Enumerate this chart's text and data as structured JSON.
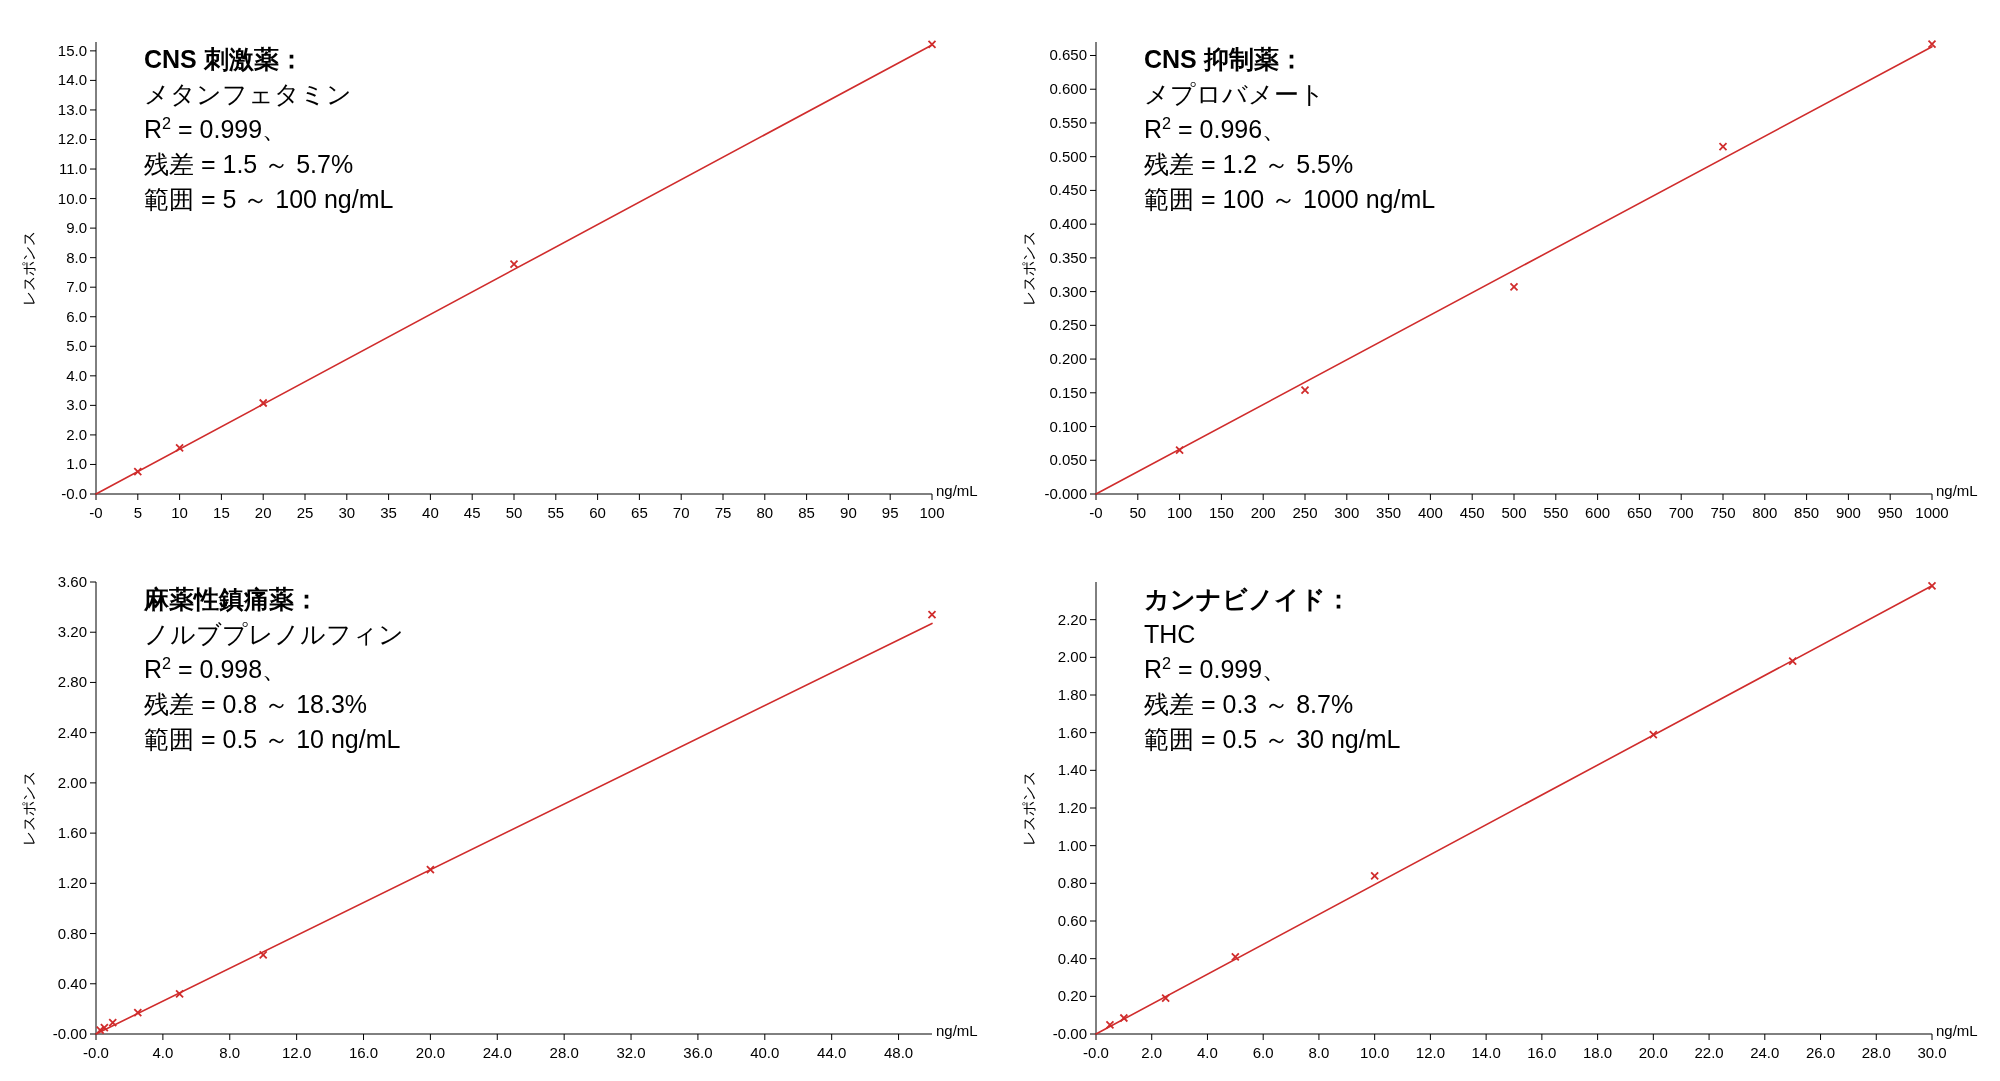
{
  "chart_data": [
    {
      "type": "scatter",
      "title": "CNS 刺激薬：",
      "subtitle": "メタンフェタミン",
      "annotations": [
        "R$^{2}$ = 0.999、",
        "残差 = 1.5 ～ 5.7%",
        "範囲 = 5 ～ 100 ng/mL"
      ],
      "xlabel": "ng/mL",
      "ylabel": "レスポンス",
      "grid": false,
      "xlim": [
        0,
        100
      ],
      "ylim": [
        0,
        15.3
      ],
      "xticks": [
        {
          "value": 0,
          "label": "-0"
        },
        5,
        10,
        15,
        20,
        25,
        30,
        35,
        40,
        45,
        50,
        55,
        60,
        65,
        70,
        75,
        80,
        85,
        90,
        95,
        100
      ],
      "yticks": [
        {
          "value": 0,
          "label": "-0.0"
        },
        {
          "value": 1,
          "label": "1.0"
        },
        {
          "value": 2,
          "label": "2.0"
        },
        {
          "value": 3,
          "label": "3.0"
        },
        {
          "value": 4,
          "label": "4.0"
        },
        {
          "value": 5,
          "label": "5.0"
        },
        {
          "value": 6,
          "label": "6.0"
        },
        {
          "value": 7,
          "label": "7.0"
        },
        {
          "value": 8,
          "label": "8.0"
        },
        {
          "value": 9,
          "label": "9.0"
        },
        {
          "value": 10,
          "label": "10.0"
        },
        {
          "value": 11,
          "label": "11.0"
        },
        {
          "value": 12,
          "label": "12.0"
        },
        {
          "value": 13,
          "label": "13.0"
        },
        {
          "value": 14,
          "label": "14.0"
        },
        {
          "value": 15,
          "label": "15.0"
        }
      ],
      "series": [
        {
          "marker": "cross",
          "color": "#d02c2c",
          "x": [
            5,
            10,
            20,
            50,
            100
          ],
          "values": [
            0.76,
            1.56,
            3.08,
            7.78,
            15.22
          ]
        },
        {
          "type": "line",
          "color": "#d02c2c",
          "x": [
            0,
            100
          ],
          "values": [
            0,
            15.2
          ]
        }
      ]
    },
    {
      "type": "scatter",
      "title": "CNS 抑制薬：",
      "subtitle": "メプロバメート",
      "annotations": [
        "R$^{2}$ = 0.996、",
        "残差 = 1.2 ～ 5.5%",
        "範囲 = 100 ～ 1000 ng/mL"
      ],
      "xlabel": "ng/mL",
      "ylabel": "レスポンス",
      "grid": false,
      "xlim": [
        0,
        1000
      ],
      "ylim": [
        0,
        0.67
      ],
      "xticks": [
        {
          "value": 0,
          "label": "-0"
        },
        50,
        100,
        150,
        200,
        250,
        300,
        350,
        400,
        450,
        500,
        550,
        600,
        650,
        700,
        750,
        800,
        850,
        900,
        950,
        1000
      ],
      "yticks": [
        {
          "value": 0,
          "label": "-0.000"
        },
        {
          "value": 0.05,
          "label": "0.050"
        },
        {
          "value": 0.1,
          "label": "0.100"
        },
        {
          "value": 0.15,
          "label": "0.150"
        },
        {
          "value": 0.2,
          "label": "0.200"
        },
        {
          "value": 0.25,
          "label": "0.250"
        },
        {
          "value": 0.3,
          "label": "0.300"
        },
        {
          "value": 0.35,
          "label": "0.350"
        },
        {
          "value": 0.4,
          "label": "0.400"
        },
        {
          "value": 0.45,
          "label": "0.450"
        },
        {
          "value": 0.5,
          "label": "0.500"
        },
        {
          "value": 0.55,
          "label": "0.550"
        },
        {
          "value": 0.6,
          "label": "0.600"
        },
        {
          "value": 0.65,
          "label": "0.650"
        }
      ],
      "series": [
        {
          "marker": "cross",
          "color": "#d02c2c",
          "x": [
            100,
            250,
            500,
            750,
            1000
          ],
          "values": [
            0.065,
            0.154,
            0.307,
            0.515,
            0.667
          ]
        },
        {
          "type": "line",
          "color": "#d02c2c",
          "x": [
            0,
            1000
          ],
          "values": [
            0,
            0.663
          ]
        }
      ]
    },
    {
      "type": "scatter",
      "title": "麻薬性鎮痛薬：",
      "subtitle": "ノルブプレノルフィン",
      "annotations": [
        "R$^{2}$ = 0.998、",
        "残差 = 0.8 ～ 18.3%",
        "範囲 = 0.5 ～ 10 ng/mL"
      ],
      "xlabel": "ng/mL",
      "ylabel": "レスポンス",
      "grid": false,
      "xlim": [
        0,
        50
      ],
      "ylim": [
        0,
        3.6
      ],
      "xticks": [
        {
          "value": 0,
          "label": "-0.0"
        },
        {
          "value": 4,
          "label": "4.0"
        },
        {
          "value": 8,
          "label": "8.0"
        },
        {
          "value": 12,
          "label": "12.0"
        },
        {
          "value": 16,
          "label": "16.0"
        },
        {
          "value": 20,
          "label": "20.0"
        },
        {
          "value": 24,
          "label": "24.0"
        },
        {
          "value": 28,
          "label": "28.0"
        },
        {
          "value": 32,
          "label": "32.0"
        },
        {
          "value": 36,
          "label": "36.0"
        },
        {
          "value": 40,
          "label": "40.0"
        },
        {
          "value": 44,
          "label": "44.0"
        },
        {
          "value": 48,
          "label": "48.0"
        }
      ],
      "yticks": [
        {
          "value": 0,
          "label": "-0.00"
        },
        {
          "value": 0.4,
          "label": "0.40"
        },
        {
          "value": 0.8,
          "label": "0.80"
        },
        {
          "value": 1.2,
          "label": "1.20"
        },
        {
          "value": 1.6,
          "label": "1.60"
        },
        {
          "value": 2,
          "label": "2.00"
        },
        {
          "value": 2.4,
          "label": "2.40"
        },
        {
          "value": 2.8,
          "label": "2.80"
        },
        {
          "value": 3.2,
          "label": "3.20"
        },
        {
          "value": 3.6,
          "label": "3.60"
        }
      ],
      "series": [
        {
          "marker": "cross",
          "color": "#d02c2c",
          "x": [
            0.25,
            0.5,
            1,
            2.5,
            5,
            10,
            20,
            50
          ],
          "values": [
            0.03,
            0.05,
            0.09,
            0.17,
            0.32,
            0.63,
            1.31,
            3.34
          ]
        },
        {
          "type": "line",
          "color": "#d02c2c",
          "x": [
            0,
            50
          ],
          "values": [
            0,
            3.27
          ]
        }
      ]
    },
    {
      "type": "scatter",
      "title": "カンナビノイド：",
      "subtitle": "THC",
      "annotations": [
        "R$^{2}$ = 0.999、",
        "残差 = 0.3 ～ 8.7%",
        "範囲 = 0.5 ～ 30 ng/mL"
      ],
      "xlabel": "ng/mL",
      "ylabel": "レスポンス",
      "grid": false,
      "xlim": [
        0,
        30
      ],
      "ylim": [
        0,
        2.4
      ],
      "xticks": [
        {
          "value": 0,
          "label": "-0.0"
        },
        {
          "value": 2,
          "label": "2.0"
        },
        {
          "value": 4,
          "label": "4.0"
        },
        {
          "value": 6,
          "label": "6.0"
        },
        {
          "value": 8,
          "label": "8.0"
        },
        {
          "value": 10,
          "label": "10.0"
        },
        {
          "value": 12,
          "label": "12.0"
        },
        {
          "value": 14,
          "label": "14.0"
        },
        {
          "value": 16,
          "label": "16.0"
        },
        {
          "value": 18,
          "label": "18.0"
        },
        {
          "value": 20,
          "label": "20.0"
        },
        {
          "value": 22,
          "label": "22.0"
        },
        {
          "value": 24,
          "label": "24.0"
        },
        {
          "value": 26,
          "label": "26.0"
        },
        {
          "value": 28,
          "label": "28.0"
        },
        {
          "value": 30,
          "label": "30.0"
        }
      ],
      "yticks": [
        {
          "value": 0,
          "label": "-0.00"
        },
        {
          "value": 0.2,
          "label": "0.20"
        },
        {
          "value": 0.4,
          "label": "0.40"
        },
        {
          "value": 0.6,
          "label": "0.60"
        },
        {
          "value": 0.8,
          "label": "0.80"
        },
        {
          "value": 1,
          "label": "1.00"
        },
        {
          "value": 1.2,
          "label": "1.20"
        },
        {
          "value": 1.4,
          "label": "1.40"
        },
        {
          "value": 1.6,
          "label": "1.60"
        },
        {
          "value": 1.8,
          "label": "1.80"
        },
        {
          "value": 2,
          "label": "2.00"
        },
        {
          "value": 2.2,
          "label": "2.20"
        }
      ],
      "series": [
        {
          "marker": "cross",
          "color": "#d02c2c",
          "x": [
            0.5,
            1,
            2.5,
            5,
            10,
            20,
            25,
            30
          ],
          "values": [
            0.048,
            0.085,
            0.19,
            0.41,
            0.84,
            1.59,
            1.98,
            2.38
          ]
        },
        {
          "type": "line",
          "color": "#d02c2c",
          "x": [
            0,
            30
          ],
          "values": [
            0,
            2.38
          ]
        }
      ]
    }
  ]
}
